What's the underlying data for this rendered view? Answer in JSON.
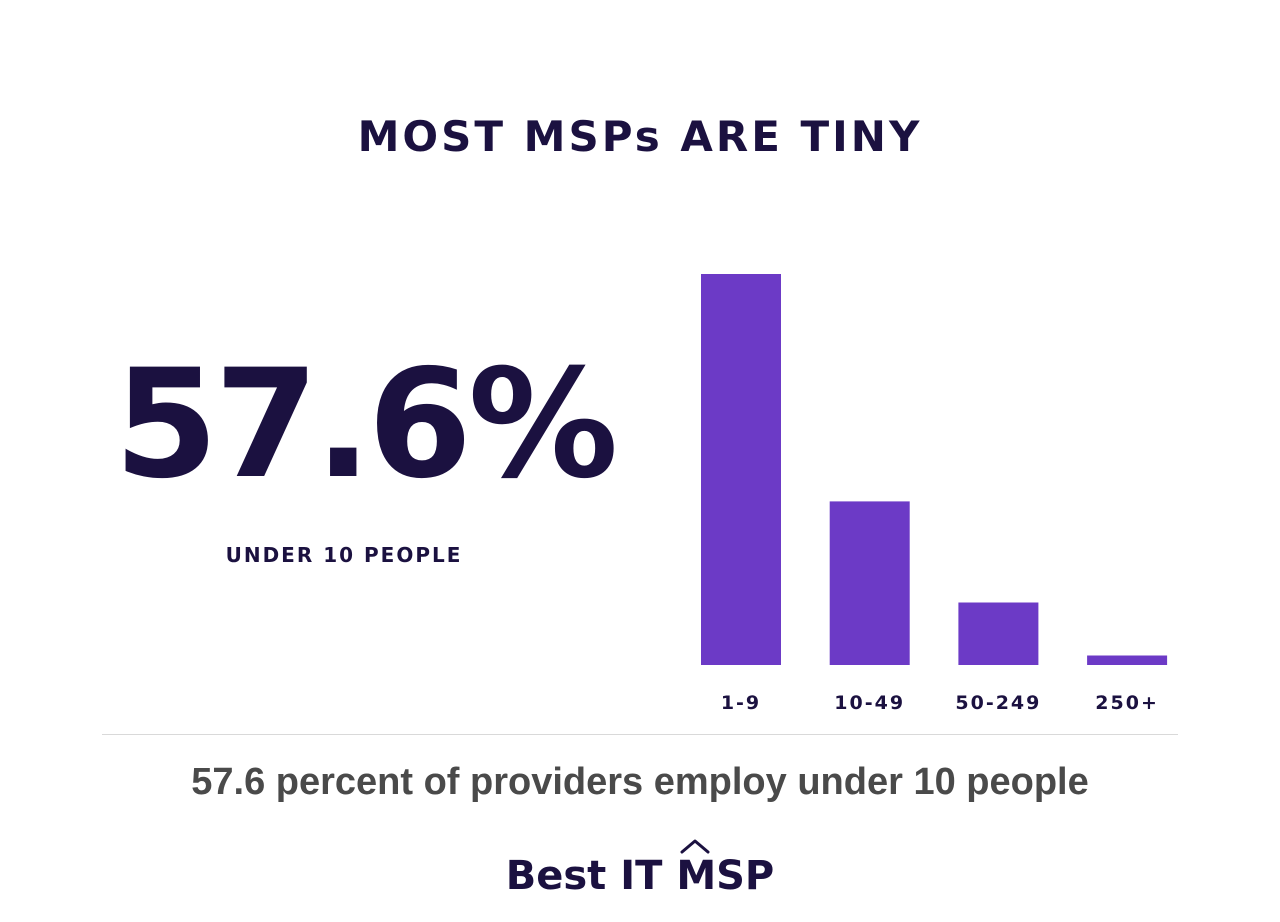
{
  "title": "MOST MSPs ARE TINY",
  "highlight": {
    "value": "57.6%",
    "label": "UNDER 10 PEOPLE"
  },
  "caption": "57.6 percent of providers employ under 10 people",
  "logo": {
    "text": "Best IT MSP",
    "icon": "roof-caret-icon"
  },
  "colors": {
    "bar": "#6c3ac6",
    "text_dark": "#1b1140",
    "caption": "#4a4a4a"
  },
  "chart_data": {
    "type": "bar",
    "categories": [
      "1-9",
      "10-49",
      "50-249",
      "250+"
    ],
    "values": [
      57.6,
      24.1,
      9.2,
      1.4
    ],
    "ylim": [
      0,
      57.6
    ],
    "grid": false,
    "axis_values_shown": false
  }
}
